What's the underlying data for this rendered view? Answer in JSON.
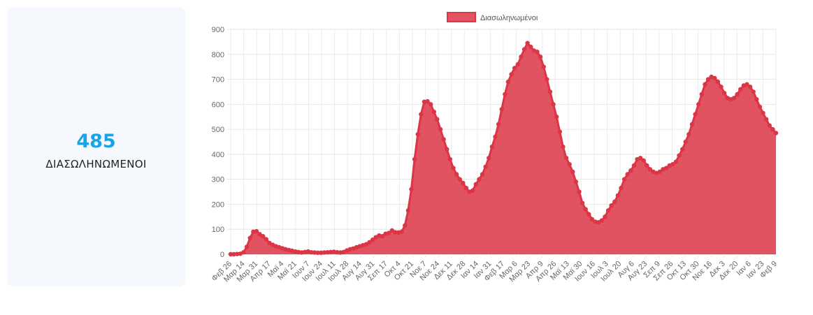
{
  "stat": {
    "value": "485",
    "label": "ΔΙΑΣΩΛΗΝΩΜΕΝΟΙ",
    "value_color": "#1aa3e8"
  },
  "chart_data": {
    "type": "area",
    "series": [
      {
        "name": "Διασωληνωμένοι",
        "color": "#dc3545",
        "fill": "#dc3545",
        "values": [
          0,
          0,
          1,
          2,
          8,
          30,
          65,
          90,
          92,
          80,
          72,
          60,
          45,
          38,
          32,
          28,
          24,
          20,
          17,
          14,
          11,
          9,
          7,
          9,
          11,
          8,
          7,
          6,
          6,
          7,
          8,
          9,
          10,
          8,
          7,
          9,
          15,
          20,
          23,
          28,
          32,
          36,
          40,
          48,
          58,
          68,
          75,
          72,
          82,
          85,
          95,
          88,
          87,
          90,
          115,
          175,
          260,
          380,
          480,
          560,
          610,
          612,
          600,
          570,
          540,
          500,
          460,
          420,
          380,
          345,
          320,
          300,
          285,
          265,
          250,
          255,
          280,
          300,
          320,
          350,
          385,
          430,
          470,
          520,
          580,
          640,
          690,
          720,
          745,
          760,
          790,
          820,
          845,
          830,
          815,
          810,
          790,
          750,
          700,
          650,
          600,
          550,
          490,
          430,
          385,
          360,
          330,
          290,
          250,
          205,
          180,
          160,
          140,
          130,
          128,
          135,
          150,
          175,
          195,
          210,
          235,
          265,
          300,
          320,
          335,
          355,
          380,
          385,
          375,
          355,
          340,
          330,
          325,
          330,
          340,
          345,
          355,
          360,
          370,
          395,
          420,
          450,
          480,
          520,
          560,
          600,
          640,
          680,
          700,
          710,
          705,
          690,
          670,
          645,
          625,
          620,
          625,
          640,
          660,
          675,
          680,
          670,
          650,
          620,
          590,
          565,
          540,
          515,
          500,
          485
        ]
      }
    ],
    "x_ticks": [
      "Φεβ 26",
      "Μαρ 14",
      "Μαρ 31",
      "Απρ 17",
      "Μαϊ 4",
      "Μαϊ 21",
      "Ιουν 7",
      "Ιουν 24",
      "Ιουλ 11",
      "Ιουλ 28",
      "Αυγ 14",
      "Αυγ 31",
      "Σεπ 17",
      "Οκτ 4",
      "Οκτ 21",
      "Νοε 7",
      "Νοε 24",
      "Δεκ 11",
      "Δεκ 28",
      "Ιαν 14",
      "Ιαν 31",
      "Φεβ 17",
      "Μαρ 6",
      "Μαρ 23",
      "Απρ 9",
      "Απρ 26",
      "Μαϊ 13",
      "Μαϊ 30",
      "Ιουν 16",
      "Ιουλ 3",
      "Ιουλ 20",
      "Αυγ 6",
      "Αυγ 23",
      "Σεπ 9",
      "Σεπ 26",
      "Οκτ 13",
      "Οκτ 30",
      "Νοε 16",
      "Δεκ 3",
      "Δεκ 20",
      "Ιαν 6",
      "Ιαν 23",
      "Φεβ 9"
    ],
    "y_ticks": [
      0,
      100,
      200,
      300,
      400,
      500,
      600,
      700,
      800,
      900
    ],
    "ylim": [
      0,
      900
    ],
    "grid": true,
    "legend_position": "top"
  }
}
